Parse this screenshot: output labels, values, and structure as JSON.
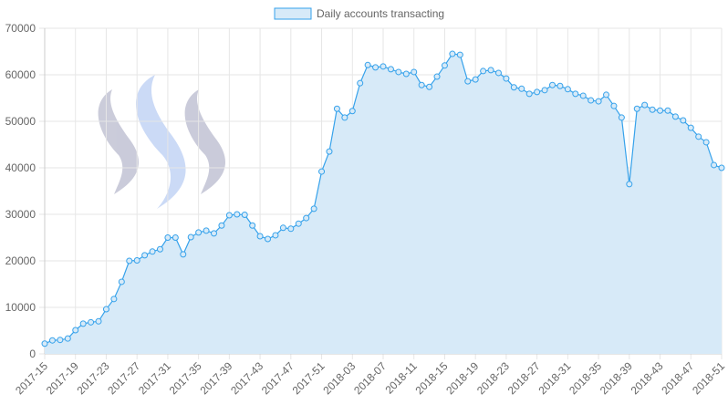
{
  "chart_data": {
    "type": "line",
    "categories": [
      "2017-15",
      null,
      null,
      null,
      "2017-19",
      null,
      null,
      null,
      "2017-23",
      null,
      null,
      null,
      "2017-27",
      null,
      null,
      null,
      "2017-31",
      null,
      null,
      null,
      "2017-35",
      null,
      null,
      null,
      "2017-39",
      null,
      null,
      null,
      "2017-43",
      null,
      null,
      null,
      "2017-47",
      null,
      null,
      null,
      "2017-51",
      null,
      null,
      null,
      "2018-03",
      null,
      null,
      null,
      "2018-07",
      null,
      null,
      null,
      "2018-11",
      null,
      null,
      null,
      "2018-15",
      null,
      null,
      null,
      "2018-19",
      null,
      null,
      null,
      "2018-23",
      null,
      null,
      null,
      "2018-27",
      null,
      null,
      null,
      "2018-31",
      null,
      null,
      null,
      "2018-35",
      null,
      null,
      null,
      "2018-39",
      null,
      null,
      null,
      "2018-43",
      null,
      null,
      null,
      "2018-47",
      null,
      null,
      null,
      "2018-51"
    ],
    "series": [
      {
        "name": "Daily accounts transacting",
        "color": "#36a2eb",
        "fill": "#d7eaf8",
        "values": [
          2200,
          2900,
          3000,
          3300,
          5100,
          6500,
          6800,
          7000,
          9600,
          11800,
          15500,
          20000,
          20100,
          21200,
          22000,
          22500,
          25000,
          25000,
          21400,
          25100,
          26100,
          26500,
          25900,
          27600,
          29800,
          30000,
          29900,
          27600,
          25300,
          24700,
          25500,
          27100,
          26900,
          28000,
          29200,
          31200,
          39200,
          43500,
          52700,
          50800,
          52200,
          58200,
          62100,
          61600,
          61800,
          61200,
          60600,
          60200,
          60600,
          57800,
          57400,
          59600,
          62000,
          64500,
          64300,
          58600,
          59000,
          60800,
          61000,
          60400,
          59200,
          57300,
          57000,
          55900,
          56300,
          56700,
          57800,
          57600,
          56900,
          55900,
          55500,
          54500,
          54300,
          55700,
          53300,
          50800,
          36500,
          52700,
          53500,
          52500,
          52300,
          52300,
          51000,
          50200,
          48600,
          46700,
          45500,
          40600,
          40000
        ]
      }
    ],
    "ylim": [
      0,
      70000
    ],
    "yticks": [
      0,
      10000,
      20000,
      30000,
      40000,
      50000,
      60000,
      70000
    ],
    "grid": true
  }
}
